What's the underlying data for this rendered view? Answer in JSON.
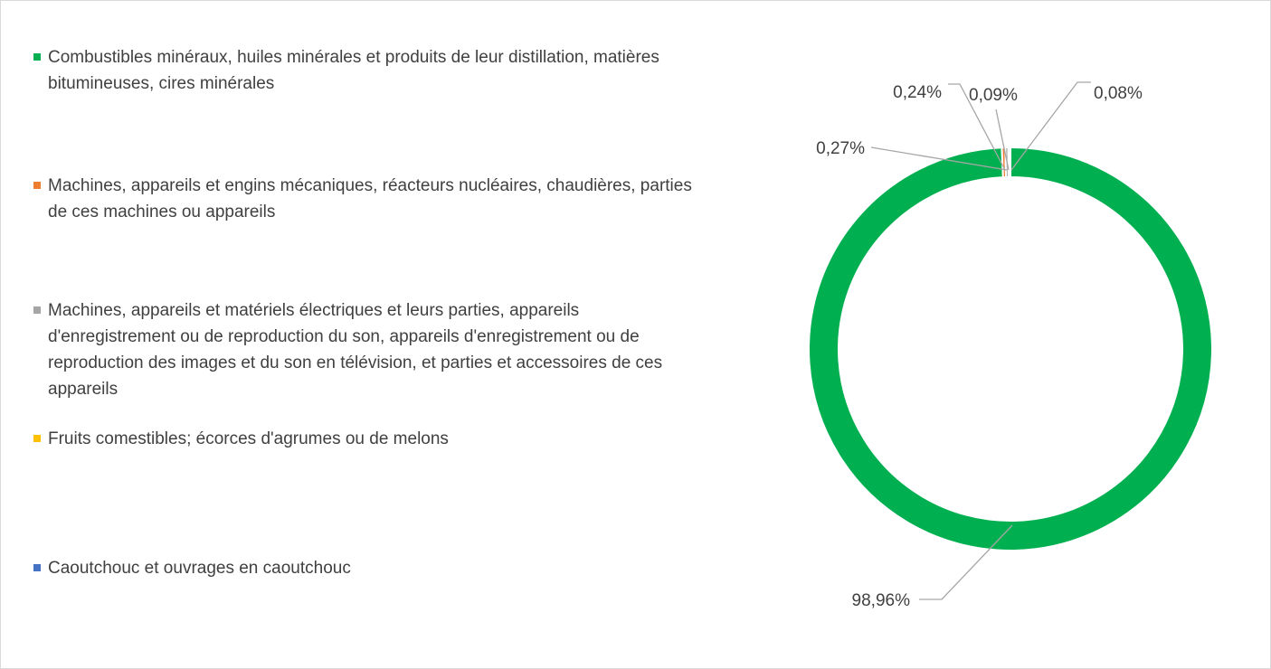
{
  "chart_data": {
    "type": "donut",
    "categories": [
      "Combustibles minéraux, huiles minérales et produits de leur distillation, matières bitumineuses, cires minérales",
      "Machines, appareils et engins mécaniques, réacteurs nucléaires, chaudières, parties de ces machines ou appareils",
      "Machines, appareils et matériels électriques et leurs parties, appareils d'enregistrement ou de reproduction du son, appareils d'enregistrement ou de reproduction des images et du son en télévision, et parties et accessoires de ces appareils",
      "Fruits comestibles; écorces d'agrumes ou de melons",
      "Caoutchouc et ouvrages en caoutchouc"
    ],
    "values": [
      98.96,
      0.27,
      0.24,
      0.09,
      0.08
    ],
    "value_labels": [
      "98,96%",
      "0,27%",
      "0,24%",
      "0,09%",
      "0,08%"
    ],
    "colors": [
      "#00b050",
      "#ed7d31",
      "#a5a5a5",
      "#ffc000",
      "#4472c4"
    ],
    "legend": "left"
  }
}
